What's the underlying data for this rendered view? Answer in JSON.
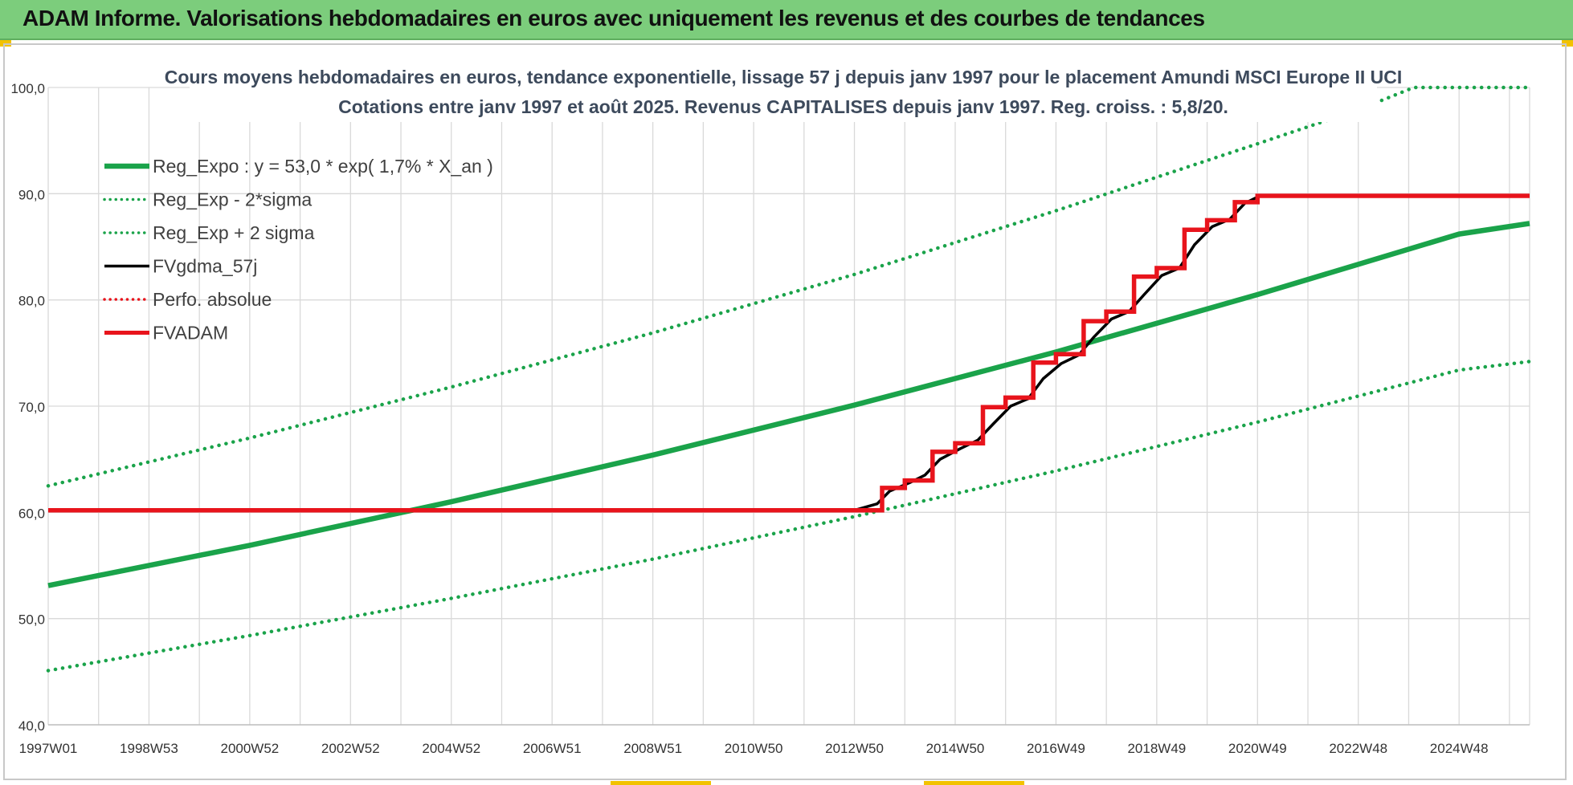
{
  "header": {
    "title": "ADAM Informe. Valorisations hebdomadaires en euros avec uniquement les revenus et des courbes de tendances"
  },
  "colors": {
    "banner": "#7ccd7c",
    "trend": "#1aa34a",
    "fvgdma": "#000000",
    "perfo": "#e8141c",
    "fvadam": "#e8141c",
    "grid": "#d9d9d9"
  },
  "chart_data": {
    "type": "line",
    "title": "Cours moyens hebdomadaires en euros, tendance exponentielle, lissage 57 j depuis janv 1997 pour le placement Amundi MSCI Europe II UCI",
    "subtitle": "Cotations entre janv 1997 et août 2025. Revenus CAPITALISES depuis janv 1997. Reg. croiss. : 5,8/20.",
    "xlabel": "",
    "ylabel": "",
    "ylim": [
      40,
      100
    ],
    "xlim": [
      1997.0,
      2026.4
    ],
    "y_ticks": [
      "40,0",
      "50,0",
      "60,0",
      "70,0",
      "80,0",
      "90,0",
      "100,0"
    ],
    "x_ticks": [
      {
        "label": "1997W01",
        "x": 1997.0
      },
      {
        "label": "1998W53",
        "x": 1999.0
      },
      {
        "label": "2000W52",
        "x": 2001.0
      },
      {
        "label": "2002W52",
        "x": 2003.0
      },
      {
        "label": "2004W52",
        "x": 2005.0
      },
      {
        "label": "2006W51",
        "x": 2007.0
      },
      {
        "label": "2008W51",
        "x": 2009.0
      },
      {
        "label": "2010W50",
        "x": 2011.0
      },
      {
        "label": "2012W50",
        "x": 2013.0
      },
      {
        "label": "2014W50",
        "x": 2015.0
      },
      {
        "label": "2016W49",
        "x": 2017.0
      },
      {
        "label": "2018W49",
        "x": 2019.0
      },
      {
        "label": "2020W49",
        "x": 2021.0
      },
      {
        "label": "2022W48",
        "x": 2023.0
      },
      {
        "label": "2024W48",
        "x": 2025.0
      }
    ],
    "grid": true,
    "legend_position": "top-left",
    "series": [
      {
        "name": "Reg_Expo : y = 53,0 * exp( 1,7% *  X_an )",
        "style": "solid-thick",
        "color": "#1aa34a",
        "x": [
          1997.0,
          2001.0,
          2005.0,
          2009.0,
          2013.0,
          2017.0,
          2021.0,
          2025.0,
          2026.4
        ],
        "y": [
          53.1,
          56.9,
          61.0,
          65.4,
          70.1,
          75.1,
          80.5,
          86.2,
          87.2
        ]
      },
      {
        "name": "Reg_Exp - 2*sigma",
        "style": "dotted",
        "color": "#1aa34a",
        "x": [
          1997.0,
          2001.0,
          2005.0,
          2009.0,
          2013.0,
          2017.0,
          2021.0,
          2025.0,
          2026.4
        ],
        "y": [
          45.1,
          48.4,
          51.9,
          55.6,
          59.6,
          63.9,
          68.5,
          73.4,
          74.2
        ]
      },
      {
        "name": "Reg_Exp + 2 sigma",
        "style": "dotted",
        "color": "#1aa34a",
        "x": [
          1997.0,
          2001.0,
          2005.0,
          2009.0,
          2013.0,
          2017.0,
          2021.0,
          2023.0,
          2024.1,
          2026.4
        ],
        "y": [
          62.5,
          67.0,
          71.8,
          76.9,
          82.4,
          88.4,
          94.7,
          97.9,
          100.0,
          100.0
        ]
      },
      {
        "name": "FVgdma_57j",
        "style": "solid",
        "color": "#000000",
        "x": [
          2013.0,
          2013.45,
          2013.7,
          2014.1,
          2014.4,
          2014.7,
          2015.1,
          2015.45,
          2015.75,
          2016.1,
          2016.45,
          2016.75,
          2017.1,
          2017.45,
          2017.75,
          2018.1,
          2018.45,
          2018.75,
          2019.1,
          2019.45,
          2019.75,
          2020.1,
          2020.45,
          2020.75,
          2021.05
        ],
        "y": [
          60.2,
          60.8,
          62.0,
          62.8,
          63.5,
          65.0,
          66.0,
          66.8,
          68.3,
          70.0,
          70.7,
          72.6,
          74.0,
          74.8,
          76.5,
          78.2,
          78.9,
          80.5,
          82.3,
          83.0,
          85.2,
          86.9,
          87.6,
          89.1,
          89.8
        ]
      },
      {
        "name": "Perfo. absolue",
        "style": "dotted",
        "color": "#e8141c",
        "x": [],
        "y": []
      },
      {
        "name": "FVADAM",
        "style": "step",
        "color": "#e8141c",
        "x": [
          1997.0,
          2013.55,
          2013.55,
          2014.0,
          2014.0,
          2014.55,
          2014.55,
          2015.0,
          2015.0,
          2015.55,
          2015.55,
          2016.0,
          2016.0,
          2016.55,
          2016.55,
          2017.0,
          2017.0,
          2017.55,
          2017.55,
          2018.0,
          2018.0,
          2018.55,
          2018.55,
          2019.0,
          2019.0,
          2019.55,
          2019.55,
          2020.0,
          2020.0,
          2020.55,
          2020.55,
          2021.0,
          2021.0,
          2026.4
        ],
        "y": [
          60.2,
          60.2,
          62.3,
          62.3,
          63.0,
          63.0,
          65.7,
          65.7,
          66.5,
          66.5,
          69.9,
          69.9,
          70.8,
          70.8,
          74.1,
          74.1,
          74.9,
          74.9,
          78.0,
          78.0,
          78.9,
          78.9,
          82.2,
          82.2,
          83.0,
          83.0,
          86.6,
          86.6,
          87.5,
          87.5,
          89.2,
          89.2,
          89.8,
          89.8
        ]
      }
    ]
  }
}
